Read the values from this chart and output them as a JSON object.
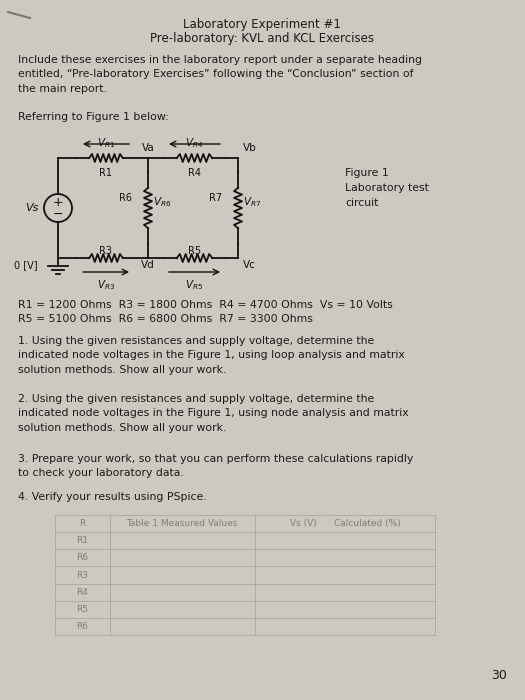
{
  "title_line1": "Laboratory Experiment #1",
  "title_line2": "Pre-laboratory: KVL and KCL Exercises",
  "para1": "Include these exercises in the laboratory report under a separate heading\nentitled, “Pre-laboratory Exercises” following the “Conclusion” section of\nthe main report.",
  "para2": "Referring to Figure 1 below:",
  "figure_caption": "Figure 1\nLaboratory test\ncircuit",
  "resistor_values": "R1 = 1200 Ohms  R3 = 1800 Ohms  R4 = 4700 Ohms  Vs = 10 Volts\nR5 = 5100 Ohms  R6 = 6800 Ohms  R7 = 3300 Ohms",
  "q1": "1. Using the given resistances and supply voltage, determine the\nindicated node voltages in the Figure 1, using loop analysis and matrix\nsolution methods. Show all your work.",
  "q2": "2. Using the given resistances and supply voltage, determine the\nindicated node voltages in the Figure 1, using node analysis and matrix\nsolution methods. Show all your work.",
  "q3": "3. Prepare your work, so that you can perform these calculations rapidly\nto check your laboratory data.",
  "q4": "4. Verify your results using PSpice.",
  "page_number": "30",
  "bg_color": "#cdc9c1",
  "text_color": "#1a1a1a",
  "table_rows": [
    "R1",
    "R6",
    "R3",
    "R4",
    "R5",
    "R6"
  ]
}
